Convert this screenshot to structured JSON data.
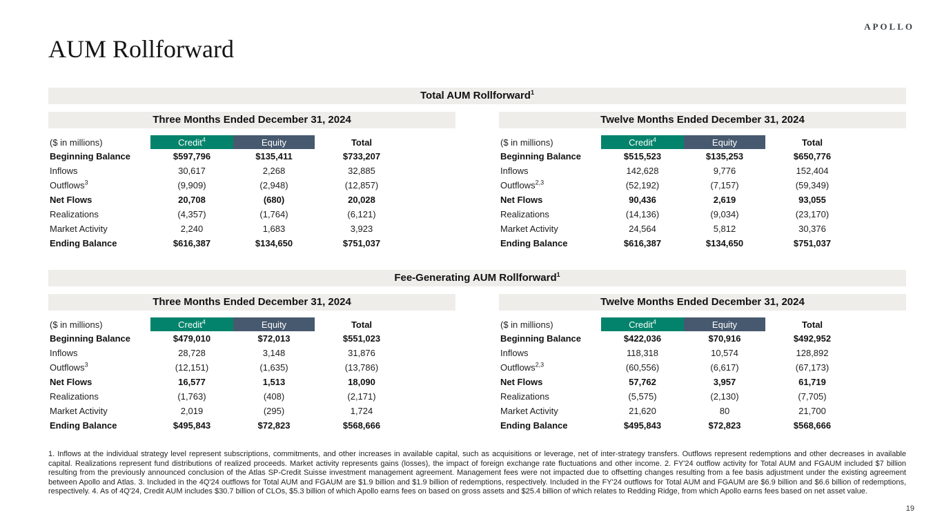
{
  "brand": {
    "logo": "APOLLO"
  },
  "page": {
    "title": "AUM Rollforward",
    "page_number": "19"
  },
  "colors": {
    "credit_header": "#03836B",
    "equity_header": "#47596E",
    "band_gray": "#EFEDEA",
    "header_text": "#FFFFFF"
  },
  "sections": [
    {
      "title": "Total AUM Rollforward",
      "title_sup": "1",
      "tables": [
        {
          "period": "Three Months Ended December 31, 2024",
          "unit_label": "($ in millions)",
          "columns": [
            {
              "label": "Credit",
              "sup": "4"
            },
            {
              "label": "Equity"
            },
            {
              "label": "Total"
            }
          ],
          "rows": [
            {
              "label": "Beginning Balance",
              "bold": true,
              "values": [
                "$597,796",
                "$135,411",
                "$733,207"
              ]
            },
            {
              "label": "Inflows",
              "values": [
                "30,617",
                "2,268",
                "32,885"
              ]
            },
            {
              "label": "Outflows",
              "sup": "3",
              "values": [
                "(9,909)",
                "(2,948)",
                "(12,857)"
              ]
            },
            {
              "label": "Net Flows",
              "bold": true,
              "values": [
                "20,708",
                "(680)",
                "20,028"
              ]
            },
            {
              "label": "Realizations",
              "values": [
                "(4,357)",
                "(1,764)",
                "(6,121)"
              ]
            },
            {
              "label": "Market Activity",
              "values": [
                "2,240",
                "1,683",
                "3,923"
              ]
            },
            {
              "label": "Ending Balance",
              "bold": true,
              "values": [
                "$616,387",
                "$134,650",
                "$751,037"
              ]
            }
          ]
        },
        {
          "period": "Twelve Months Ended December 31, 2024",
          "unit_label": "($ in millions)",
          "columns": [
            {
              "label": "Credit",
              "sup": "4"
            },
            {
              "label": "Equity"
            },
            {
              "label": "Total"
            }
          ],
          "rows": [
            {
              "label": "Beginning Balance",
              "bold": true,
              "values": [
                "$515,523",
                "$135,253",
                "$650,776"
              ]
            },
            {
              "label": "Inflows",
              "values": [
                "142,628",
                "9,776",
                "152,404"
              ]
            },
            {
              "label": "Outflows",
              "sup": "2,3",
              "values": [
                "(52,192)",
                "(7,157)",
                "(59,349)"
              ]
            },
            {
              "label": "Net Flows",
              "bold": true,
              "values": [
                "90,436",
                "2,619",
                "93,055"
              ]
            },
            {
              "label": "Realizations",
              "values": [
                "(14,136)",
                "(9,034)",
                "(23,170)"
              ]
            },
            {
              "label": "Market Activity",
              "values": [
                "24,564",
                "5,812",
                "30,376"
              ]
            },
            {
              "label": "Ending Balance",
              "bold": true,
              "values": [
                "$616,387",
                "$134,650",
                "$751,037"
              ]
            }
          ]
        }
      ]
    },
    {
      "title": "Fee-Generating AUM Rollforward",
      "title_sup": "1",
      "tables": [
        {
          "period": "Three Months Ended December 31, 2024",
          "unit_label": "($ in millions)",
          "columns": [
            {
              "label": "Credit",
              "sup": "4"
            },
            {
              "label": "Equity"
            },
            {
              "label": "Total"
            }
          ],
          "rows": [
            {
              "label": "Beginning Balance",
              "bold": true,
              "values": [
                "$479,010",
                "$72,013",
                "$551,023"
              ]
            },
            {
              "label": "Inflows",
              "values": [
                "28,728",
                "3,148",
                "31,876"
              ]
            },
            {
              "label": "Outflows",
              "sup": "3",
              "values": [
                "(12,151)",
                "(1,635)",
                "(13,786)"
              ]
            },
            {
              "label": "Net Flows",
              "bold": true,
              "values": [
                "16,577",
                "1,513",
                "18,090"
              ]
            },
            {
              "label": "Realizations",
              "values": [
                "(1,763)",
                "(408)",
                "(2,171)"
              ]
            },
            {
              "label": "Market Activity",
              "values": [
                "2,019",
                "(295)",
                "1,724"
              ]
            },
            {
              "label": "Ending Balance",
              "bold": true,
              "values": [
                "$495,843",
                "$72,823",
                "$568,666"
              ]
            }
          ]
        },
        {
          "period": "Twelve Months Ended December 31, 2024",
          "unit_label": "($ in millions)",
          "columns": [
            {
              "label": "Credit",
              "sup": "4"
            },
            {
              "label": "Equity"
            },
            {
              "label": "Total"
            }
          ],
          "rows": [
            {
              "label": "Beginning Balance",
              "bold": true,
              "values": [
                "$422,036",
                "$70,916",
                "$492,952"
              ]
            },
            {
              "label": "Inflows",
              "values": [
                "118,318",
                "10,574",
                "128,892"
              ]
            },
            {
              "label": "Outflows",
              "sup": "2,3",
              "values": [
                "(60,556)",
                "(6,617)",
                "(67,173)"
              ]
            },
            {
              "label": "Net Flows",
              "bold": true,
              "values": [
                "57,762",
                "3,957",
                "61,719"
              ]
            },
            {
              "label": "Realizations",
              "values": [
                "(5,575)",
                "(2,130)",
                "(7,705)"
              ]
            },
            {
              "label": "Market Activity",
              "values": [
                "21,620",
                "80",
                "21,700"
              ]
            },
            {
              "label": "Ending Balance",
              "bold": true,
              "values": [
                "$495,843",
                "$72,823",
                "$568,666"
              ]
            }
          ]
        }
      ]
    }
  ],
  "footnotes": "1. Inflows at the individual strategy level represent subscriptions, commitments, and other increases in available capital, such as acquisitions or leverage, net of inter-strategy transfers. Outflows represent redemptions and other decreases in available capital. Realizations represent fund distributions of realized proceeds. Market activity represents gains (losses), the impact of foreign exchange rate fluctuations and other income. 2. FY'24 outflow activity for Total AUM and FGAUM included $7 billion resulting from the previously announced conclusion of the Atlas SP-Credit Suisse investment management agreement. Management fees were not impacted due to offsetting changes resulting from a fee basis adjustment under the existing agreement between Apollo and Atlas. 3. Included in the 4Q'24 outflows for Total AUM and FGAUM are $1.9 billion and $1.9 billion of redemptions, respectively. Included in the FY'24 outflows for Total AUM and FGAUM are $6.9 billion and $6.6 billion of redemptions, respectively. 4. As of 4Q'24, Credit AUM includes $30.7 billion of CLOs, $5.3 billion of which Apollo earns fees on based on gross assets and $25.4 billion of which relates to Redding Ridge, from which Apollo earns fees based on net asset value."
}
